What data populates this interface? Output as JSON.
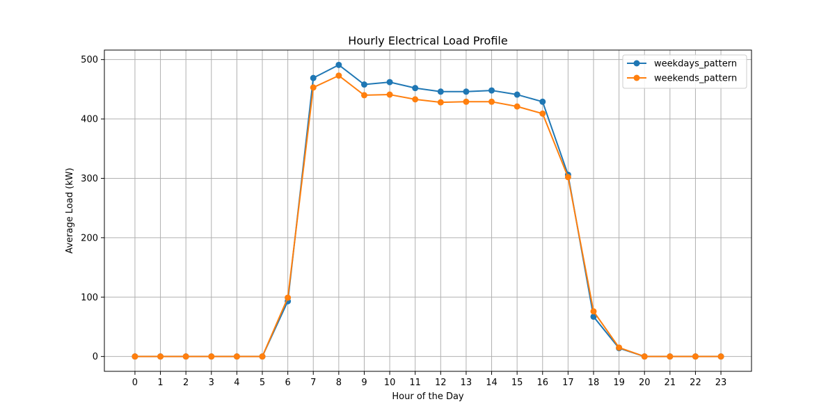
{
  "chart_data": {
    "type": "line",
    "title": "Hourly Electrical Load Profile",
    "xlabel": "Hour of the Day",
    "ylabel": "Average Load (kW)",
    "x": [
      0,
      1,
      2,
      3,
      4,
      5,
      6,
      7,
      8,
      9,
      10,
      11,
      12,
      13,
      14,
      15,
      16,
      17,
      18,
      19,
      20,
      21,
      22,
      23
    ],
    "xticks": [
      0,
      1,
      2,
      3,
      4,
      5,
      6,
      7,
      8,
      9,
      10,
      11,
      12,
      13,
      14,
      15,
      16,
      17,
      18,
      19,
      20,
      21,
      22,
      23
    ],
    "yticks": [
      0,
      100,
      200,
      300,
      400,
      500
    ],
    "xlim": [
      -1.2,
      24.2
    ],
    "ylim": [
      -25,
      516
    ],
    "grid": true,
    "legend_position": "top-right",
    "series": [
      {
        "name": "weekdays_pattern",
        "color": "#1f77b4",
        "values": [
          0,
          0,
          0,
          0,
          0,
          0,
          93,
          469,
          491,
          458,
          462,
          452,
          446,
          446,
          448,
          441,
          429,
          306,
          67,
          14,
          0,
          0,
          0,
          0
        ]
      },
      {
        "name": "weekends_pattern",
        "color": "#ff7f0e",
        "values": [
          0,
          0,
          0,
          0,
          0,
          0,
          99,
          453,
          473,
          440,
          441,
          433,
          428,
          429,
          429,
          421,
          409,
          302,
          76,
          15,
          0,
          0,
          0,
          0
        ]
      }
    ]
  }
}
